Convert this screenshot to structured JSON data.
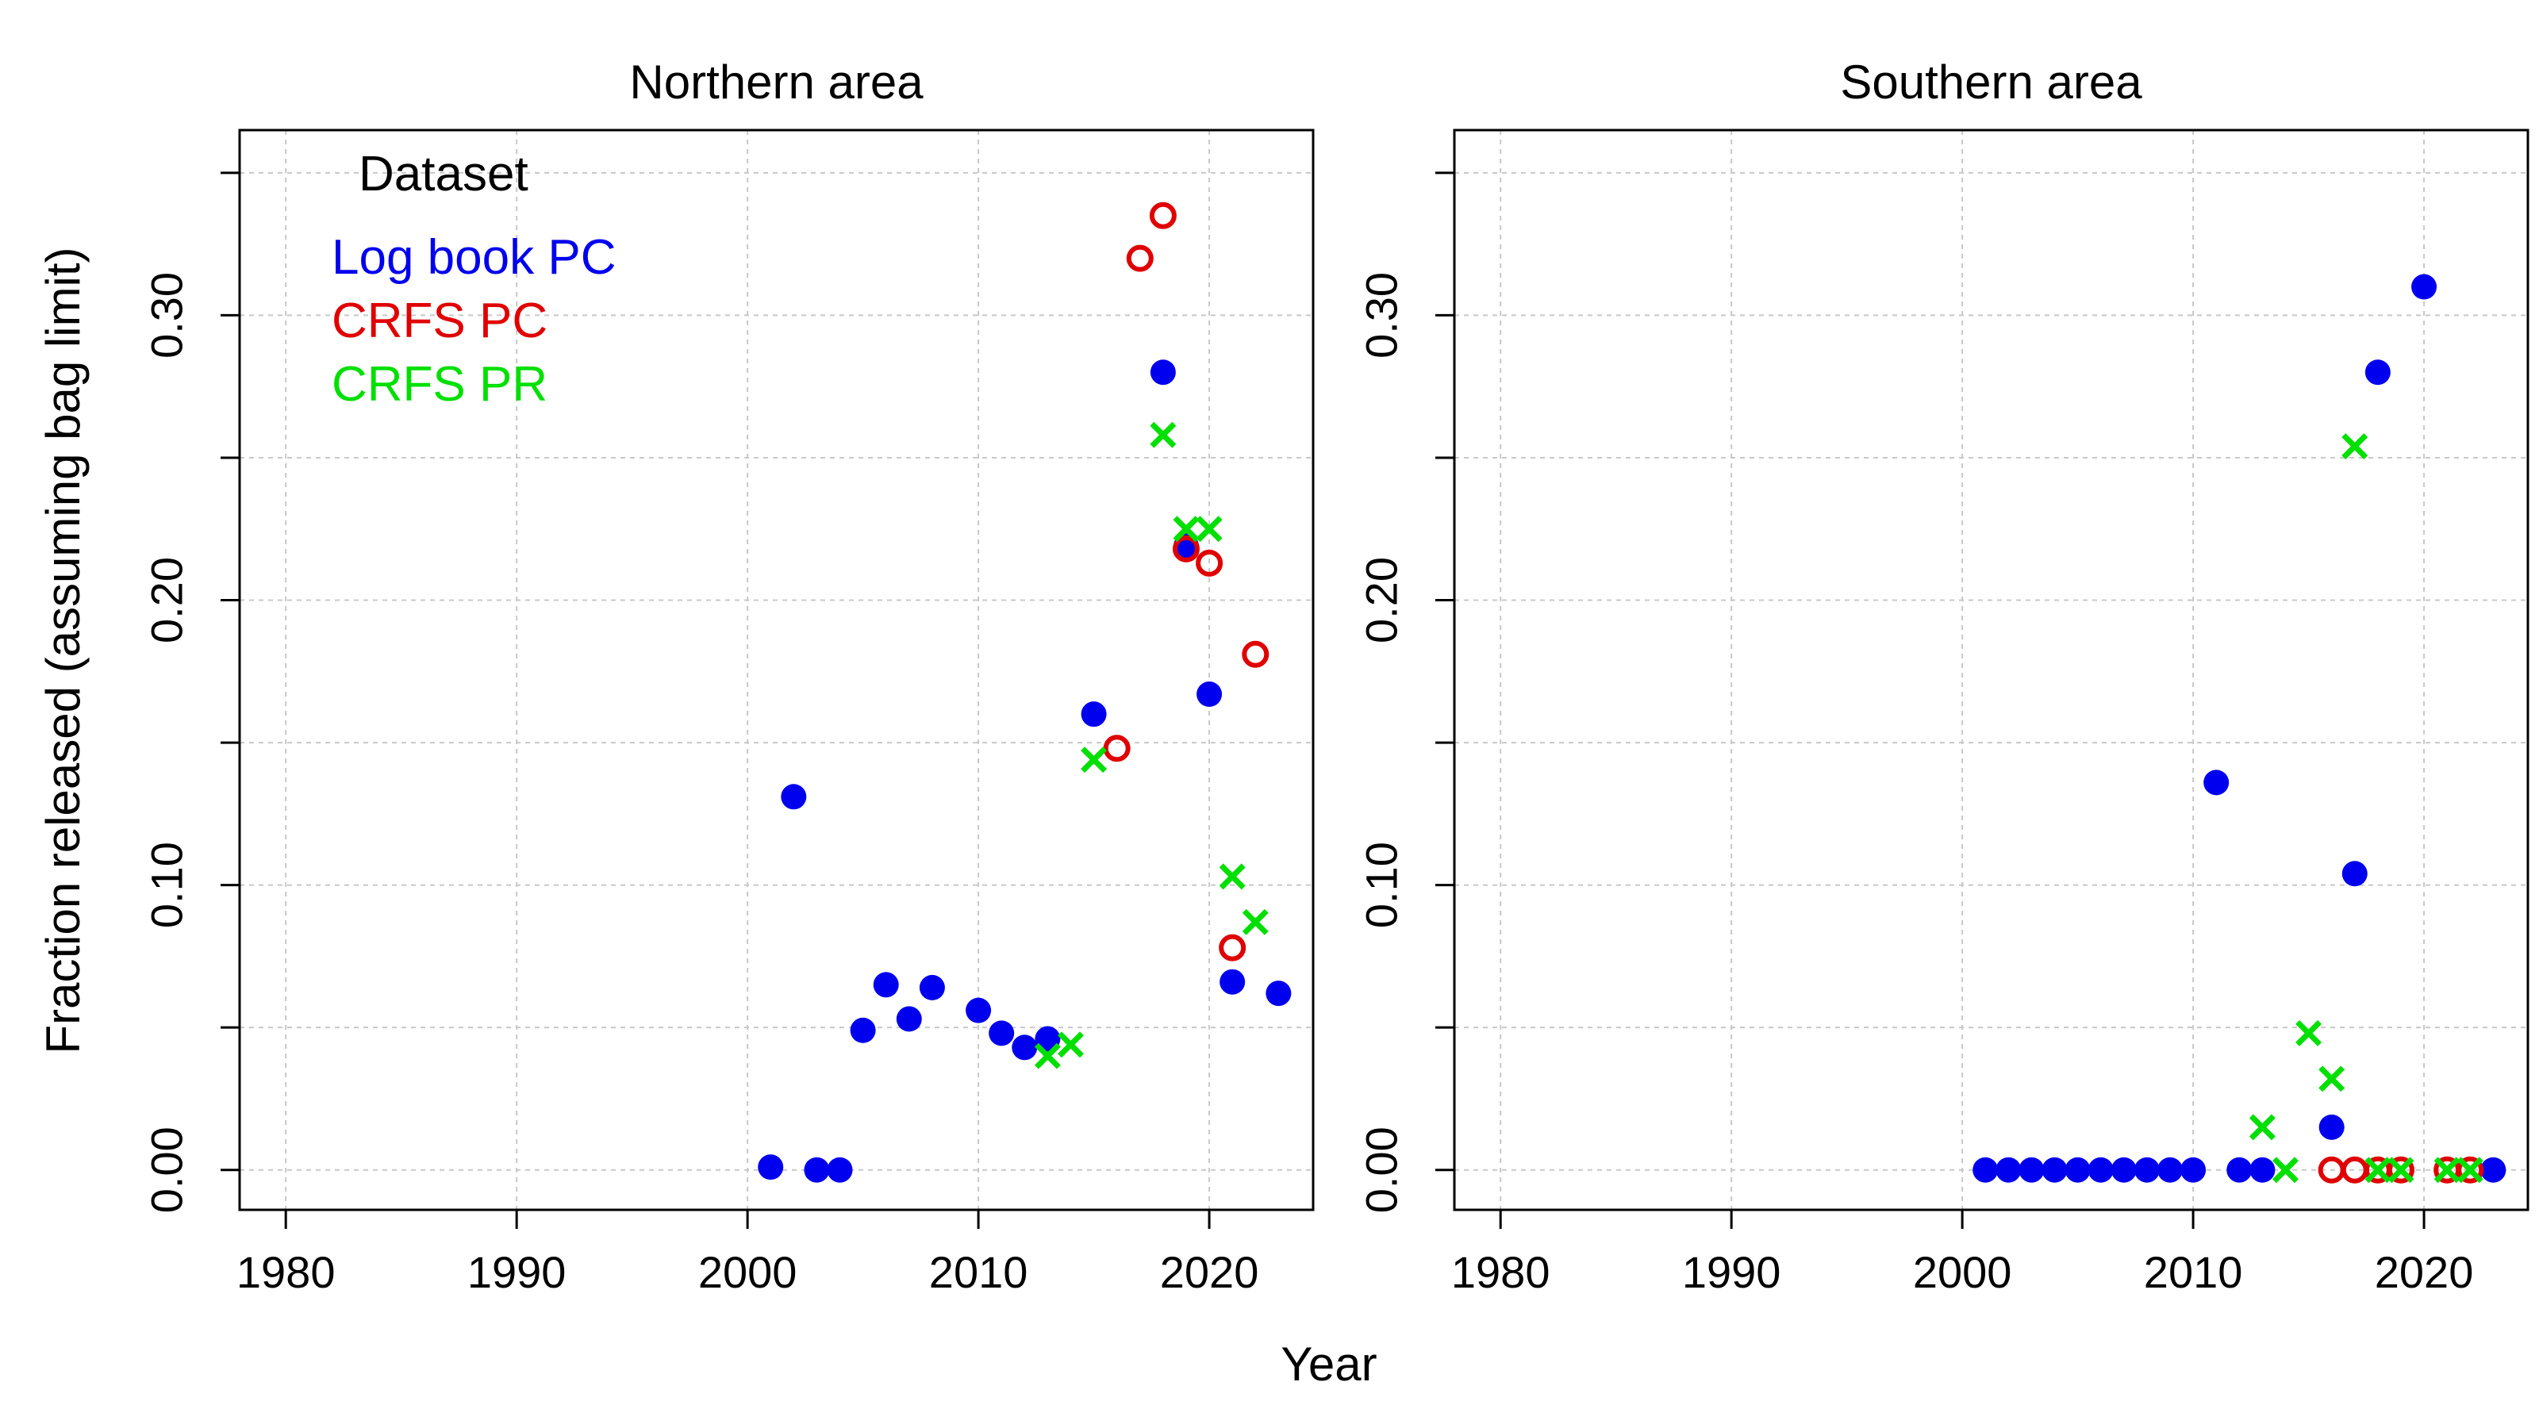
{
  "colors": {
    "log_book_pc": "#0000ee",
    "crfs_pc": "#e00000",
    "crfs_pr": "#00e000"
  },
  "shared": {
    "xlabel": "Year",
    "ylabel": "Fraction released (assuming bag limit)",
    "legend": {
      "title": "Dataset",
      "placement": "top-left",
      "items": [
        "Log book PC",
        "CRFS PC",
        "CRFS PR"
      ]
    },
    "x_ticks": [
      "1980",
      "1990",
      "2000",
      "2010",
      "2020"
    ],
    "y_ticks": [
      "0.00",
      "0.10",
      "0.20",
      "0.30"
    ]
  },
  "chart_data": [
    {
      "type": "scatter",
      "title": "Northern area",
      "xlim": [
        1978,
        2024.5
      ],
      "ylim": [
        -0.014,
        0.365
      ],
      "grid": true,
      "series": [
        {
          "name": "Log book PC",
          "marker": "filled-circle",
          "color": "#0000ee",
          "x": [
            2001,
            2002,
            2003,
            2004,
            2005,
            2006,
            2007,
            2008,
            2010,
            2011,
            2012,
            2013,
            2015,
            2018,
            2019,
            2020,
            2021,
            2023
          ],
          "y": [
            0.001,
            0.131,
            0.0,
            0.0,
            0.049,
            0.065,
            0.053,
            0.064,
            0.056,
            0.048,
            0.043,
            0.046,
            0.16,
            0.28,
            0.219,
            0.167,
            0.066,
            0.062
          ]
        },
        {
          "name": "CRFS PC",
          "marker": "open-circle",
          "color": "#e00000",
          "x": [
            2016,
            2017,
            2018,
            2019,
            2020,
            2021,
            2022
          ],
          "y": [
            0.148,
            0.32,
            0.335,
            0.218,
            0.213,
            0.078,
            0.181
          ]
        },
        {
          "name": "CRFS PR",
          "marker": "cross",
          "color": "#00e000",
          "x": [
            2013,
            2014,
            2015,
            2018,
            2019,
            2020,
            2021,
            2022
          ],
          "y": [
            0.04,
            0.044,
            0.144,
            0.258,
            0.225,
            0.225,
            0.103,
            0.087
          ]
        }
      ]
    },
    {
      "type": "scatter",
      "title": "Southern area",
      "xlim": [
        1978,
        2024.5
      ],
      "ylim": [
        -0.014,
        0.365
      ],
      "grid": true,
      "series": [
        {
          "name": "Log book PC",
          "marker": "filled-circle",
          "color": "#0000ee",
          "x": [
            2001,
            2002,
            2003,
            2004,
            2005,
            2006,
            2007,
            2008,
            2009,
            2010,
            2011,
            2012,
            2013,
            2016,
            2017,
            2018,
            2020,
            2023
          ],
          "y": [
            0,
            0,
            0,
            0,
            0,
            0,
            0,
            0,
            0,
            0,
            0.136,
            0,
            0,
            0.015,
            0.104,
            0.28,
            0.31,
            0
          ]
        },
        {
          "name": "CRFS PC",
          "marker": "open-circle",
          "color": "#e00000",
          "x": [
            2016,
            2017,
            2018,
            2019,
            2021,
            2022
          ],
          "y": [
            0,
            0,
            0,
            0,
            0,
            0
          ]
        },
        {
          "name": "CRFS PR",
          "marker": "cross",
          "color": "#00e000",
          "x": [
            2013,
            2014,
            2015,
            2016,
            2017,
            2018,
            2019,
            2021,
            2022
          ],
          "y": [
            0.015,
            0.0,
            0.048,
            0.032,
            0.254,
            0,
            0,
            0,
            0
          ]
        }
      ]
    }
  ]
}
